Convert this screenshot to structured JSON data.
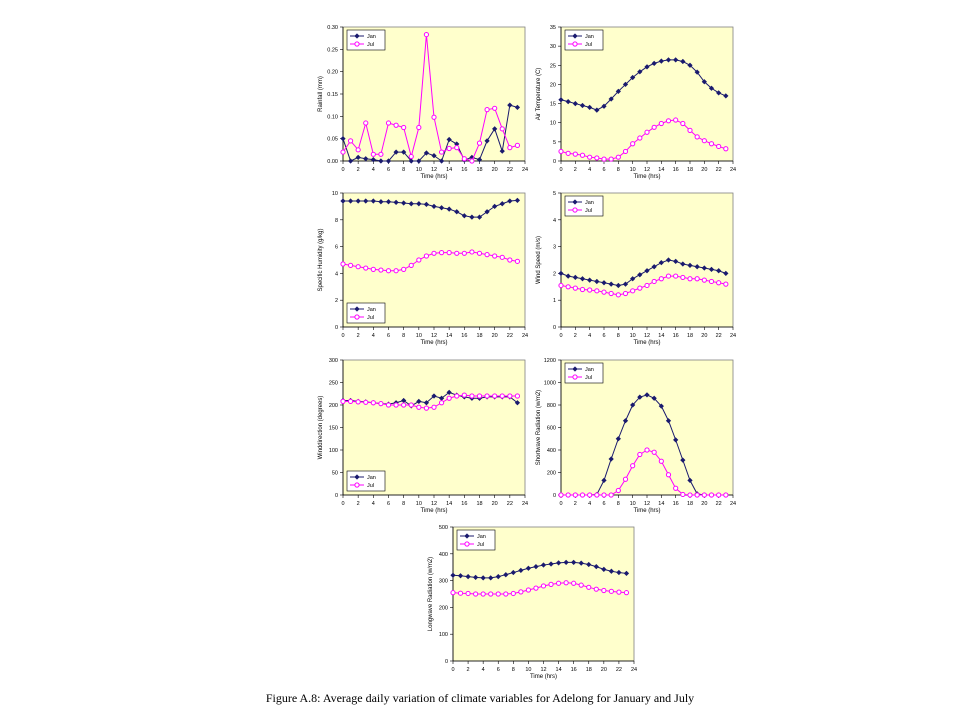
{
  "caption": "Figure A.8: Average daily variation of climate variables for Adelong for January and July",
  "colors": {
    "jan": "#1a1a6e",
    "jul": "#ff00ff",
    "plot_bg": "#ffffcc"
  },
  "chart_data": [
    {
      "type": "line",
      "xlabel": "Time (hrs)",
      "ylabel": "Rainfall (mm)",
      "xlim": [
        0,
        24
      ],
      "ylim": [
        0,
        0.3
      ],
      "xticks": [
        0,
        2,
        4,
        6,
        8,
        10,
        12,
        14,
        16,
        18,
        20,
        22,
        24
      ],
      "yticks": [
        0,
        0.05,
        0.1,
        0.15,
        0.2,
        0.25,
        0.3
      ],
      "ytick_labels": [
        "0.00",
        "0.05",
        "0.10",
        "0.15",
        "0.20",
        "0.25",
        "0.30"
      ],
      "legend": "top-left",
      "grid": false,
      "x": [
        0,
        1,
        2,
        3,
        4,
        5,
        6,
        7,
        8,
        9,
        10,
        11,
        12,
        13,
        14,
        15,
        16,
        17,
        18,
        19,
        20,
        21,
        22,
        23
      ],
      "series": [
        {
          "name": "Jan",
          "values": [
            0.05,
            0.0,
            0.008,
            0.005,
            0.003,
            0.0,
            0.0,
            0.02,
            0.02,
            0.0,
            0.0,
            0.018,
            0.012,
            0.0,
            0.048,
            0.038,
            0.002,
            0.008,
            0.003,
            0.045,
            0.072,
            0.022,
            0.125,
            0.12
          ]
        },
        {
          "name": "Jul",
          "values": [
            0.02,
            0.045,
            0.025,
            0.085,
            0.015,
            0.015,
            0.085,
            0.08,
            0.075,
            0.01,
            0.075,
            0.283,
            0.098,
            0.02,
            0.028,
            0.03,
            0.005,
            0.0,
            0.04,
            0.115,
            0.118,
            0.072,
            0.03,
            0.035
          ]
        }
      ]
    },
    {
      "type": "line",
      "xlabel": "Time (hrs)",
      "ylabel": "Air Temperature (C)",
      "xlim": [
        0,
        24
      ],
      "ylim": [
        0,
        35
      ],
      "xticks": [
        0,
        2,
        4,
        6,
        8,
        10,
        12,
        14,
        16,
        18,
        20,
        22,
        24
      ],
      "yticks": [
        0,
        5,
        10,
        15,
        20,
        25,
        30,
        35
      ],
      "ytick_labels": [
        "0",
        "5",
        "10",
        "15",
        "20",
        "25",
        "30",
        "35"
      ],
      "legend": "top-left",
      "grid": false,
      "x": [
        0,
        1,
        2,
        3,
        4,
        5,
        6,
        7,
        8,
        9,
        10,
        11,
        12,
        13,
        14,
        15,
        16,
        17,
        18,
        19,
        20,
        21,
        22,
        23
      ],
      "series": [
        {
          "name": "Jan",
          "values": [
            16.0,
            15.5,
            15.0,
            14.5,
            14.0,
            13.3,
            14.3,
            16.2,
            18.2,
            20.0,
            21.8,
            23.3,
            24.6,
            25.5,
            26.1,
            26.4,
            26.4,
            26.0,
            25.0,
            23.2,
            20.7,
            19.0,
            17.8,
            17.0
          ]
        },
        {
          "name": "Jul",
          "values": [
            2.5,
            2.0,
            1.8,
            1.5,
            1.0,
            0.8,
            0.5,
            0.5,
            1.0,
            2.5,
            4.5,
            6.0,
            7.5,
            8.8,
            9.8,
            10.5,
            10.7,
            9.8,
            8.0,
            6.3,
            5.3,
            4.5,
            3.8,
            3.2
          ]
        }
      ]
    },
    {
      "type": "line",
      "xlabel": "Time (hrs)",
      "ylabel": "Specific Humidity (g/kg)",
      "xlim": [
        0,
        24
      ],
      "ylim": [
        0,
        10
      ],
      "xticks": [
        0,
        2,
        4,
        6,
        8,
        10,
        12,
        14,
        16,
        18,
        20,
        22,
        24
      ],
      "yticks": [
        0,
        2,
        4,
        6,
        8,
        10
      ],
      "ytick_labels": [
        "0",
        "2",
        "4",
        "6",
        "8",
        "10"
      ],
      "legend": "bottom-left",
      "grid": false,
      "x": [
        0,
        1,
        2,
        3,
        4,
        5,
        6,
        7,
        8,
        9,
        10,
        11,
        12,
        13,
        14,
        15,
        16,
        17,
        18,
        19,
        20,
        21,
        22,
        23
      ],
      "series": [
        {
          "name": "Jan",
          "values": [
            9.4,
            9.4,
            9.4,
            9.4,
            9.4,
            9.35,
            9.35,
            9.3,
            9.25,
            9.2,
            9.2,
            9.15,
            9.0,
            8.9,
            8.8,
            8.6,
            8.3,
            8.2,
            8.2,
            8.6,
            9.0,
            9.2,
            9.4,
            9.45
          ]
        },
        {
          "name": "Jul",
          "values": [
            4.7,
            4.6,
            4.5,
            4.4,
            4.3,
            4.25,
            4.2,
            4.2,
            4.3,
            4.6,
            5.0,
            5.3,
            5.5,
            5.55,
            5.55,
            5.5,
            5.5,
            5.6,
            5.5,
            5.4,
            5.3,
            5.2,
            5.0,
            4.9
          ]
        }
      ]
    },
    {
      "type": "line",
      "xlabel": "Time (hrs)",
      "ylabel": "Wind Speed (m/s)",
      "xlim": [
        0,
        24
      ],
      "ylim": [
        0,
        5
      ],
      "xticks": [
        0,
        2,
        4,
        6,
        8,
        10,
        12,
        14,
        16,
        18,
        20,
        22,
        24
      ],
      "yticks": [
        0,
        1,
        2,
        3,
        4,
        5
      ],
      "ytick_labels": [
        "0",
        "1",
        "2",
        "3",
        "4",
        "5"
      ],
      "legend": "top-left",
      "grid": false,
      "x": [
        0,
        1,
        2,
        3,
        4,
        5,
        6,
        7,
        8,
        9,
        10,
        11,
        12,
        13,
        14,
        15,
        16,
        17,
        18,
        19,
        20,
        21,
        22,
        23
      ],
      "series": [
        {
          "name": "Jan",
          "values": [
            2.0,
            1.9,
            1.85,
            1.8,
            1.75,
            1.7,
            1.65,
            1.6,
            1.55,
            1.6,
            1.8,
            1.95,
            2.1,
            2.25,
            2.4,
            2.5,
            2.45,
            2.35,
            2.3,
            2.25,
            2.2,
            2.15,
            2.1,
            2.0
          ]
        },
        {
          "name": "Jul",
          "values": [
            1.55,
            1.5,
            1.45,
            1.4,
            1.38,
            1.35,
            1.3,
            1.25,
            1.2,
            1.25,
            1.35,
            1.45,
            1.55,
            1.7,
            1.8,
            1.9,
            1.9,
            1.85,
            1.8,
            1.8,
            1.75,
            1.7,
            1.65,
            1.6
          ]
        }
      ]
    },
    {
      "type": "line",
      "xlabel": "Time (hrs)",
      "ylabel": "Winddirection (degrees)",
      "xlim": [
        0,
        24
      ],
      "ylim": [
        0,
        300
      ],
      "xticks": [
        0,
        2,
        4,
        6,
        8,
        10,
        12,
        14,
        16,
        18,
        20,
        22,
        24
      ],
      "yticks": [
        0,
        50,
        100,
        150,
        200,
        250,
        300
      ],
      "ytick_labels": [
        "0",
        "50",
        "100",
        "150",
        "200",
        "250",
        "300"
      ],
      "legend": "bottom-left",
      "grid": false,
      "x": [
        0,
        1,
        2,
        3,
        4,
        5,
        6,
        7,
        8,
        9,
        10,
        11,
        12,
        13,
        14,
        15,
        16,
        17,
        18,
        19,
        20,
        21,
        22,
        23
      ],
      "series": [
        {
          "name": "Jan",
          "values": [
            210,
            210,
            208,
            207,
            205,
            203,
            202,
            205,
            210,
            198,
            208,
            205,
            220,
            215,
            228,
            222,
            218,
            215,
            215,
            218,
            218,
            218,
            218,
            205
          ]
        },
        {
          "name": "Jul",
          "values": [
            208,
            208,
            207,
            206,
            205,
            203,
            200,
            200,
            200,
            200,
            195,
            193,
            195,
            205,
            215,
            220,
            222,
            220,
            220,
            220,
            220,
            220,
            220,
            220
          ]
        }
      ]
    },
    {
      "type": "line",
      "xlabel": "Time (hrs)",
      "ylabel": "Shortwave Radiation (w/m2)",
      "xlim": [
        0,
        24
      ],
      "ylim": [
        0,
        1200
      ],
      "xticks": [
        0,
        2,
        4,
        6,
        8,
        10,
        12,
        14,
        16,
        18,
        20,
        22,
        24
      ],
      "yticks": [
        0,
        200,
        400,
        600,
        800,
        1000,
        1200
      ],
      "ytick_labels": [
        "0",
        "200",
        "400",
        "600",
        "800",
        "1000",
        "1200"
      ],
      "legend": "top-left",
      "grid": false,
      "x": [
        0,
        1,
        2,
        3,
        4,
        5,
        6,
        7,
        8,
        9,
        10,
        11,
        12,
        13,
        14,
        15,
        16,
        17,
        18,
        19,
        20,
        21,
        22,
        23
      ],
      "series": [
        {
          "name": "Jan",
          "values": [
            0,
            0,
            0,
            0,
            0,
            5,
            130,
            320,
            500,
            660,
            800,
            870,
            890,
            860,
            790,
            660,
            490,
            310,
            130,
            10,
            0,
            0,
            0,
            0
          ]
        },
        {
          "name": "Jul",
          "values": [
            0,
            0,
            0,
            0,
            0,
            0,
            0,
            0,
            40,
            140,
            260,
            360,
            400,
            380,
            300,
            180,
            60,
            5,
            0,
            0,
            0,
            0,
            0,
            0
          ]
        }
      ]
    },
    {
      "type": "line",
      "xlabel": "Time (hrs)",
      "ylabel": "Longwave Radiation (w/m2)",
      "xlim": [
        0,
        24
      ],
      "ylim": [
        0,
        500
      ],
      "xticks": [
        0,
        2,
        4,
        6,
        8,
        10,
        12,
        14,
        16,
        18,
        20,
        22,
        24
      ],
      "yticks": [
        0,
        100,
        200,
        300,
        400,
        500
      ],
      "ytick_labels": [
        "0",
        "100",
        "200",
        "300",
        "400",
        "500"
      ],
      "legend": "top-left",
      "grid": false,
      "x": [
        0,
        1,
        2,
        3,
        4,
        5,
        6,
        7,
        8,
        9,
        10,
        11,
        12,
        13,
        14,
        15,
        16,
        17,
        18,
        19,
        20,
        21,
        22,
        23
      ],
      "series": [
        {
          "name": "Jan",
          "values": [
            320,
            318,
            315,
            312,
            310,
            310,
            315,
            322,
            330,
            338,
            346,
            352,
            358,
            362,
            366,
            368,
            368,
            365,
            360,
            352,
            342,
            335,
            330,
            327
          ]
        },
        {
          "name": "Jul",
          "values": [
            255,
            253,
            252,
            250,
            250,
            250,
            250,
            250,
            252,
            258,
            265,
            272,
            280,
            286,
            290,
            292,
            290,
            283,
            275,
            268,
            263,
            260,
            257,
            255
          ]
        }
      ]
    }
  ]
}
